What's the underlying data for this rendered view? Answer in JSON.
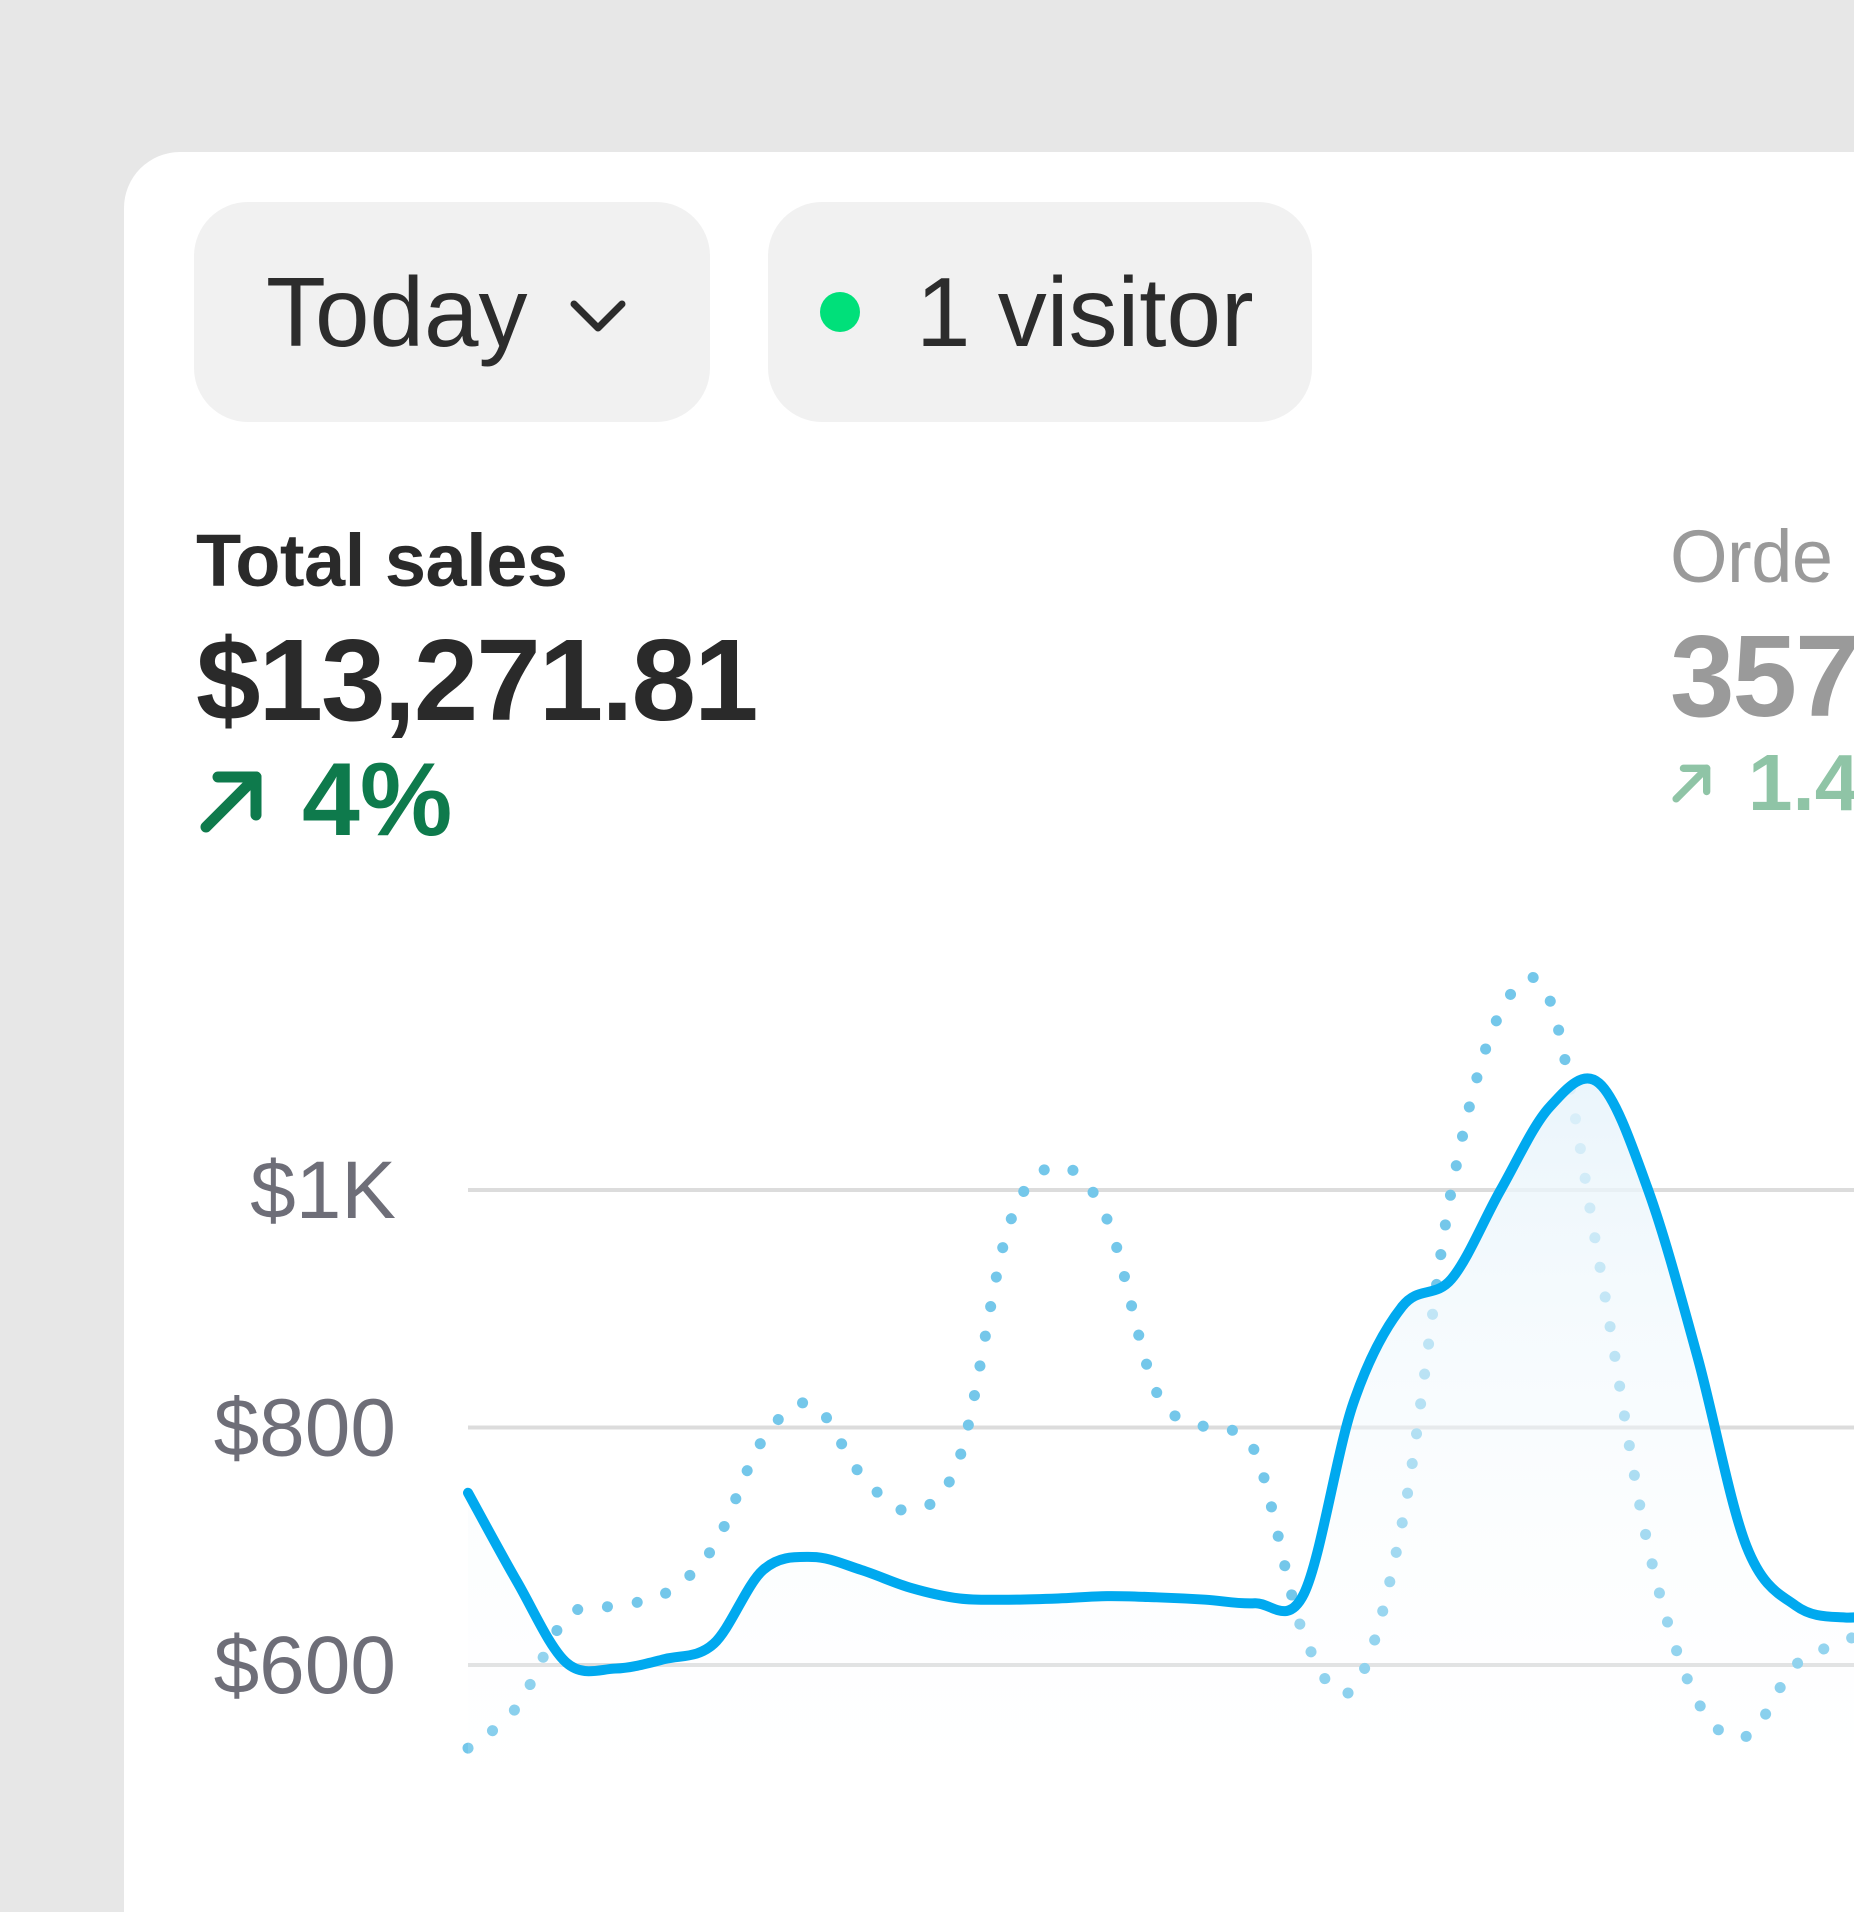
{
  "toolbar": {
    "date_filter_label": "Today",
    "live_visitors_label": "1 visitor",
    "live_dot_color": "#00e07a"
  },
  "metrics": {
    "total_sales": {
      "label": "Total sales",
      "value": "$13,271.81",
      "change": "4%",
      "change_color": "#0e7a4c"
    },
    "orders": {
      "label": "Orde",
      "value": "357",
      "change": "1.4",
      "change_color": "#8fc4a6"
    }
  },
  "chart_data": {
    "type": "line",
    "y_ticks": [
      "$1K",
      "$800",
      "$600"
    ],
    "ylim": [
      530,
      1000
    ],
    "grid": true,
    "series": [
      {
        "style": "solid",
        "color": "#00a9ef",
        "x": [
          0,
          1,
          2,
          3,
          4,
          5,
          6,
          7,
          8,
          9,
          10,
          11,
          12,
          13,
          14,
          15,
          16,
          17,
          18,
          19,
          20,
          21,
          22,
          23,
          24,
          25,
          26,
          27,
          28,
          29
        ],
        "values": [
          745,
          670,
          602,
          597,
          605,
          618,
          680,
          691,
          680,
          665,
          656,
          655,
          656,
          658,
          657,
          655,
          652,
          660,
          820,
          902,
          925,
          1000,
          1070,
          1090,
          1000,
          860,
          700,
          650,
          640,
          645
        ]
      },
      {
        "style": "dotted",
        "color": "#74c7ea",
        "x": [
          0,
          1,
          2,
          3,
          4,
          5,
          6,
          7,
          8,
          9,
          10,
          11,
          12,
          13,
          14,
          15,
          16,
          17,
          18,
          19,
          20,
          21,
          22,
          23,
          24,
          25,
          26,
          27,
          28,
          29
        ],
        "values": [
          530,
          565,
          640,
          650,
          660,
          700,
          790,
          820,
          760,
          730,
          775,
          970,
          1020,
          975,
          830,
          800,
          780,
          625,
          580,
          720,
          1000,
          1150,
          1160,
          940,
          700,
          570,
          540,
          600,
          620,
          640
        ]
      }
    ]
  }
}
